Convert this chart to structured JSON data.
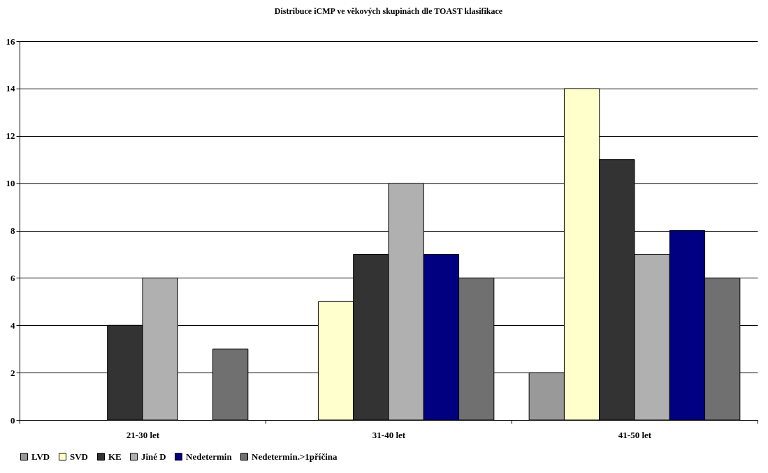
{
  "chart_data": {
    "type": "bar",
    "title": "Distribuce iCMP ve věkových skupinách dle TOAST klasifikace",
    "categories": [
      "21-30 let",
      "31-40 let",
      "41-50 let"
    ],
    "series": [
      {
        "name": "LVD",
        "color": "#999999",
        "values": [
          0,
          0,
          2
        ]
      },
      {
        "name": "SVD",
        "color": "#ffffcc",
        "values": [
          0,
          5,
          14
        ]
      },
      {
        "name": "KE",
        "color": "#333333",
        "values": [
          4,
          7,
          11
        ]
      },
      {
        "name": "Jiné D",
        "color": "#b0b0b0",
        "values": [
          6,
          10,
          7
        ]
      },
      {
        "name": "Nedetermin",
        "color": "#000080",
        "values": [
          0,
          7,
          8
        ]
      },
      {
        "name": "Nedetermin.>1příčina",
        "color": "#707070",
        "values": [
          3,
          6,
          6
        ]
      }
    ],
    "ylim": [
      0,
      16
    ],
    "yticks": [
      0,
      2,
      4,
      6,
      8,
      10,
      12,
      14,
      16
    ],
    "grid": "y",
    "legend": "bottom"
  }
}
